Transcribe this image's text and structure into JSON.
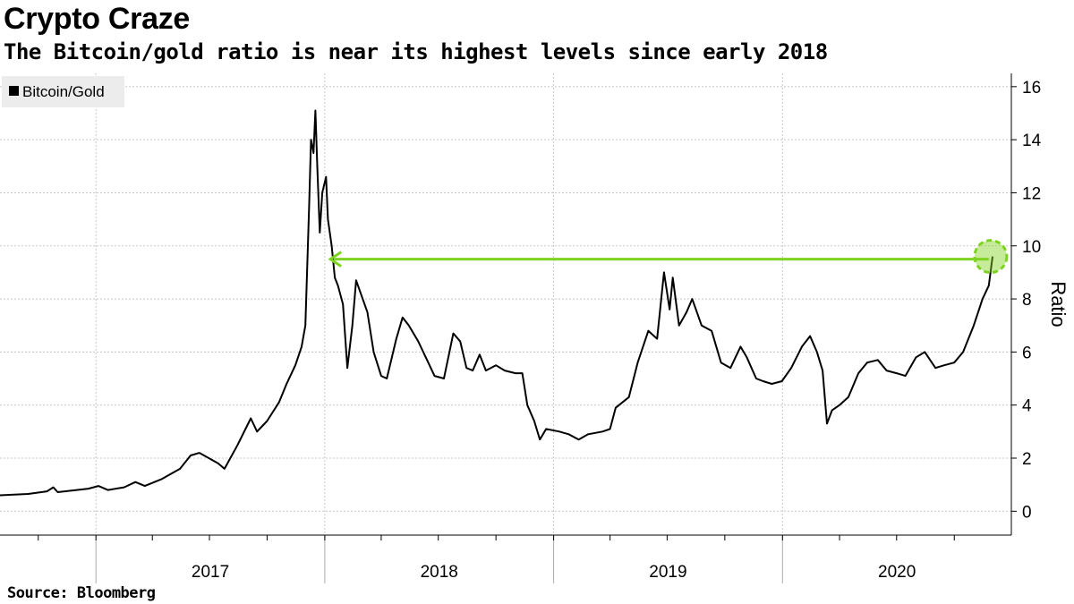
{
  "header": {
    "title": "Crypto Craze",
    "subtitle": "The Bitcoin/gold ratio is near its highest levels since early 2018"
  },
  "footer": {
    "source": "Source: Bloomberg"
  },
  "colors": {
    "line": "#000000",
    "annotation": "#7ed321",
    "grid": "#c8c8c8",
    "legend_bg": "#ececec"
  },
  "chart_data": {
    "type": "line",
    "title": "Crypto Craze",
    "subtitle": "The Bitcoin/gold ratio is near its highest levels since early 2018",
    "ylabel": "Ratio",
    "y_axis_side": "right",
    "ylim": [
      -0.9,
      16.5
    ],
    "yticks": [
      0,
      2,
      4,
      6,
      8,
      10,
      12,
      14,
      16
    ],
    "xlim": [
      "2016-08-01",
      "2020-12-31"
    ],
    "x_tick_labels": [
      "2017",
      "2018",
      "2019",
      "2020"
    ],
    "grid": true,
    "legend": {
      "position": "top-left",
      "entries": [
        "Bitcoin/Gold"
      ]
    },
    "series": [
      {
        "name": "Bitcoin/Gold",
        "points": [
          [
            "2016-08-01",
            0.6
          ],
          [
            "2016-09-15",
            0.65
          ],
          [
            "2016-10-15",
            0.75
          ],
          [
            "2016-10-25",
            0.9
          ],
          [
            "2016-11-01",
            0.72
          ],
          [
            "2016-12-01",
            0.8
          ],
          [
            "2016-12-20",
            0.85
          ],
          [
            "2017-01-05",
            0.95
          ],
          [
            "2017-01-20",
            0.8
          ],
          [
            "2017-02-15",
            0.9
          ],
          [
            "2017-03-05",
            1.1
          ],
          [
            "2017-03-20",
            0.95
          ],
          [
            "2017-04-15",
            1.2
          ],
          [
            "2017-05-15",
            1.6
          ],
          [
            "2017-06-01",
            2.1
          ],
          [
            "2017-06-15",
            2.2
          ],
          [
            "2017-07-15",
            1.8
          ],
          [
            "2017-07-25",
            1.6
          ],
          [
            "2017-08-15",
            2.5
          ],
          [
            "2017-09-05",
            3.5
          ],
          [
            "2017-09-15",
            3.0
          ],
          [
            "2017-10-01",
            3.4
          ],
          [
            "2017-10-20",
            4.1
          ],
          [
            "2017-11-01",
            4.8
          ],
          [
            "2017-11-15",
            5.5
          ],
          [
            "2017-11-25",
            6.2
          ],
          [
            "2017-12-01",
            7.0
          ],
          [
            "2017-12-07",
            11.5
          ],
          [
            "2017-12-10",
            14.0
          ],
          [
            "2017-12-14",
            13.5
          ],
          [
            "2017-12-17",
            15.1
          ],
          [
            "2017-12-20",
            13.0
          ],
          [
            "2017-12-24",
            10.5
          ],
          [
            "2017-12-28",
            12.0
          ],
          [
            "2018-01-03",
            12.6
          ],
          [
            "2018-01-06",
            11.0
          ],
          [
            "2018-01-12",
            10.0
          ],
          [
            "2018-01-17",
            8.8
          ],
          [
            "2018-01-22",
            8.5
          ],
          [
            "2018-01-30",
            7.8
          ],
          [
            "2018-02-06",
            5.4
          ],
          [
            "2018-02-14",
            7.0
          ],
          [
            "2018-02-20",
            8.7
          ],
          [
            "2018-03-01",
            8.1
          ],
          [
            "2018-03-10",
            7.5
          ],
          [
            "2018-03-20",
            6.0
          ],
          [
            "2018-04-01",
            5.1
          ],
          [
            "2018-04-10",
            5.0
          ],
          [
            "2018-04-25",
            6.5
          ],
          [
            "2018-05-05",
            7.3
          ],
          [
            "2018-05-15",
            7.0
          ],
          [
            "2018-05-30",
            6.4
          ],
          [
            "2018-06-15",
            5.6
          ],
          [
            "2018-06-25",
            5.1
          ],
          [
            "2018-07-10",
            5.0
          ],
          [
            "2018-07-25",
            6.7
          ],
          [
            "2018-08-05",
            6.4
          ],
          [
            "2018-08-15",
            5.4
          ],
          [
            "2018-08-25",
            5.3
          ],
          [
            "2018-09-05",
            5.9
          ],
          [
            "2018-09-15",
            5.3
          ],
          [
            "2018-10-01",
            5.5
          ],
          [
            "2018-10-15",
            5.3
          ],
          [
            "2018-11-01",
            5.2
          ],
          [
            "2018-11-12",
            5.2
          ],
          [
            "2018-11-20",
            4.0
          ],
          [
            "2018-12-01",
            3.4
          ],
          [
            "2018-12-10",
            2.7
          ],
          [
            "2018-12-20",
            3.1
          ],
          [
            "2019-01-10",
            3.0
          ],
          [
            "2019-01-25",
            2.9
          ],
          [
            "2019-02-10",
            2.7
          ],
          [
            "2019-02-25",
            2.9
          ],
          [
            "2019-03-20",
            3.0
          ],
          [
            "2019-04-01",
            3.1
          ],
          [
            "2019-04-10",
            3.9
          ],
          [
            "2019-05-01",
            4.3
          ],
          [
            "2019-05-15",
            5.6
          ],
          [
            "2019-06-01",
            6.8
          ],
          [
            "2019-06-15",
            6.5
          ],
          [
            "2019-06-26",
            9.0
          ],
          [
            "2019-07-05",
            7.6
          ],
          [
            "2019-07-10",
            8.8
          ],
          [
            "2019-07-20",
            7.0
          ],
          [
            "2019-08-01",
            7.5
          ],
          [
            "2019-08-10",
            8.0
          ],
          [
            "2019-08-25",
            7.0
          ],
          [
            "2019-09-10",
            6.8
          ],
          [
            "2019-09-25",
            5.6
          ],
          [
            "2019-10-10",
            5.4
          ],
          [
            "2019-10-26",
            6.2
          ],
          [
            "2019-11-05",
            5.8
          ],
          [
            "2019-11-20",
            5.0
          ],
          [
            "2019-12-01",
            4.9
          ],
          [
            "2019-12-15",
            4.8
          ],
          [
            "2019-12-31",
            4.9
          ],
          [
            "2020-01-15",
            5.4
          ],
          [
            "2020-02-01",
            6.2
          ],
          [
            "2020-02-14",
            6.6
          ],
          [
            "2020-02-25",
            6.0
          ],
          [
            "2020-03-05",
            5.3
          ],
          [
            "2020-03-12",
            3.3
          ],
          [
            "2020-03-20",
            3.8
          ],
          [
            "2020-04-01",
            4.0
          ],
          [
            "2020-04-15",
            4.3
          ],
          [
            "2020-05-01",
            5.2
          ],
          [
            "2020-05-15",
            5.6
          ],
          [
            "2020-06-01",
            5.7
          ],
          [
            "2020-06-15",
            5.3
          ],
          [
            "2020-07-01",
            5.2
          ],
          [
            "2020-07-15",
            5.1
          ],
          [
            "2020-08-01",
            5.8
          ],
          [
            "2020-08-15",
            6.0
          ],
          [
            "2020-09-01",
            5.4
          ],
          [
            "2020-09-15",
            5.5
          ],
          [
            "2020-10-01",
            5.6
          ],
          [
            "2020-10-15",
            6.0
          ],
          [
            "2020-11-01",
            7.0
          ],
          [
            "2020-11-15",
            8.0
          ],
          [
            "2020-11-25",
            8.5
          ],
          [
            "2020-12-01",
            9.6
          ]
        ]
      }
    ],
    "annotations": [
      {
        "type": "arrow",
        "from": [
          "2020-11-25",
          9.5
        ],
        "to": [
          "2018-01-10",
          9.5
        ]
      },
      {
        "type": "circle",
        "center": [
          "2020-11-28",
          9.6
        ]
      }
    ]
  }
}
